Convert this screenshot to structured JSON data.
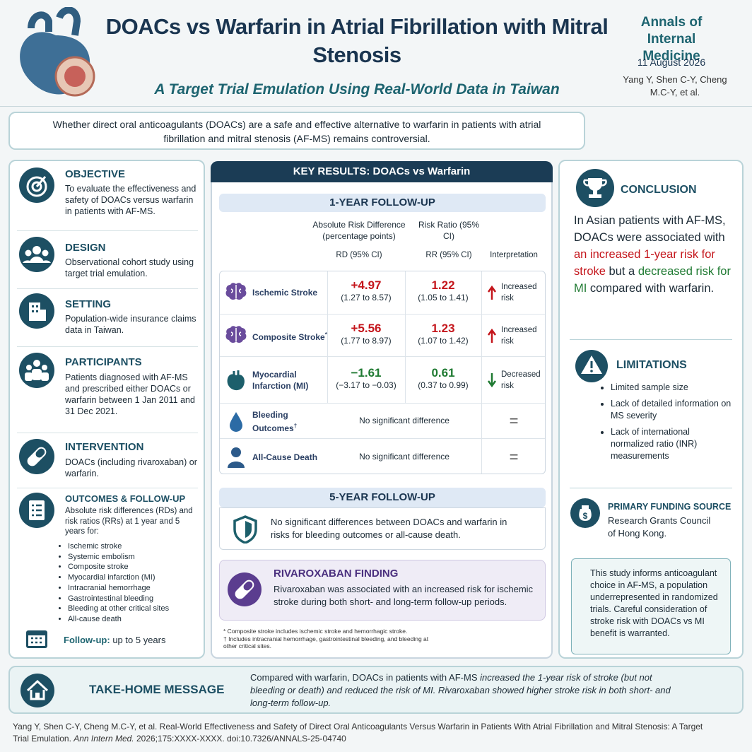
{
  "header": {
    "title": "DOACs vs Warfarin in Atrial Fibrillation with Mitral Stenosis",
    "subtitle": "A Target Trial Emulation Using Real-World Data in Taiwan",
    "journal": "Annals of Internal Medicine",
    "date": "11 August 2026",
    "authors": "Yang Y, Shen C-Y, Cheng M.C-Y, et al."
  },
  "intro": "Whether direct oral anticoagulants (DOACs) are a safe and effective alternative to warfarin in patients with atrial fibrillation and mitral stenosis (AF-MS) remains controversial.",
  "left": {
    "objective": {
      "heading": "OBJECTIVE",
      "text": "To evaluate the effectiveness and safety of DOACs versus warfarin in patients with AF-MS."
    },
    "design": {
      "heading": "DESIGN",
      "text": "Observational cohort study using target trial emulation."
    },
    "setting": {
      "heading": "SETTING",
      "text": "Population-wide insurance claims data in Taiwan."
    },
    "participants": {
      "heading": "PARTICIPANTS",
      "text": "Patients diagnosed with AF-MS and prescribed either DOACs or warfarin between 1 Jan 2011 and 31 Dec 2021."
    },
    "intervention": {
      "heading": "INTERVENTION",
      "text": "DOACs (including rivaroxaban) or warfarin."
    },
    "outcomes": {
      "heading": "OUTCOMES & FOLLOW-UP",
      "text": "Absolute risk differences (RDs) and risk ratios (RRs) at 1 year and 5 years for:",
      "items": [
        "Ischemic stroke",
        "Systemic embolism",
        "Composite stroke",
        "Myocardial infarction (MI)",
        "Intracranial hemorrhage",
        "Gastrointestinal bleeding",
        "Bleeding at other critical sites",
        "All-cause death"
      ]
    },
    "followup": {
      "label": "Follow-up:",
      "value": "up to 5 years"
    }
  },
  "results": {
    "title": "KEY RESULTS: DOACs vs Warfarin",
    "one_year": "1-YEAR FOLLOW-UP",
    "columns": {
      "rd_header": "Absolute Risk Difference (percentage points)",
      "rr_header": "Risk Ratio (95% CI)",
      "rd_sub": "RD (95% CI)",
      "rr_sub": "RR (95% CI)",
      "interpretation": "Interpretation"
    },
    "rows": [
      {
        "name": "Ischemic Stroke",
        "rd": "+4.97",
        "rd_ci": "(1.27 to 8.57)",
        "rr": "1.22",
        "rr_ci": "(1.05 to 1.41)",
        "interpretation": "Increased risk"
      },
      {
        "name": "Composite Stroke",
        "marker": "*",
        "rd": "+5.56",
        "rd_ci": "(1.77 to 8.97)",
        "rr": "1.23",
        "rr_ci": "(1.07 to 1.42)",
        "interpretation": "Increased risk"
      },
      {
        "name": "Myocardial Infarction (MI)",
        "rd": "−1.61",
        "rd_ci": "(−3.17 to −0.03)",
        "rr": "0.61",
        "rr_ci": "(0.37 to 0.99)",
        "interpretation": "Decreased risk"
      },
      {
        "name": "Bleeding Outcomes",
        "marker": "†",
        "note": "No significant difference",
        "symbol": "="
      },
      {
        "name": "All-Cause Death",
        "note": "No significant difference",
        "symbol": "="
      }
    ],
    "five_year": {
      "heading": "5-YEAR FOLLOW-UP",
      "text": "No significant differences between DOACs and warfarin in risks for bleeding outcomes or all-cause death."
    },
    "rivaroxaban": {
      "heading": "RIVAROXABAN FINDING",
      "text": "Rivaroxaban was associated with an increased risk for ischemic stroke during both short- and long-term follow-up periods."
    },
    "footnotes": [
      "* Composite stroke includes ischemic stroke and hemorrhagic stroke.",
      "† Includes intracranial hemorrhage, gastrointestinal bleeding, and bleeding at other critical sites."
    ]
  },
  "right": {
    "conclusion": {
      "heading": "CONCLUSION",
      "segments": [
        "In Asian patients with AF-MS, DOACs were associated with ",
        "an increased 1-year risk for stroke",
        " but a ",
        "decreased risk for MI",
        " compared with warfarin."
      ]
    },
    "limitations": {
      "heading": "LIMITATIONS",
      "items": [
        "Limited sample size",
        "Lack of detailed information on MS severity",
        "Lack of international normalized ratio (INR) measurements"
      ]
    },
    "funding": {
      "heading": "PRIMARY FUNDING SOURCE",
      "text": "Research Grants Council of Hong Kong."
    },
    "note": "This study informs anticoagulant choice in AF-MS, a population underrepresented in randomized trials. Careful consideration of stroke risk with DOACs vs MI benefit is warranted."
  },
  "take_home": {
    "heading": "TAKE-HOME MESSAGE",
    "segments": [
      "Compared with warfarin, DOACs in patients with AF-MS ",
      "increased the 1-year risk of stroke (but not bleeding or death) and reduced the risk of MI. Rivaroxaban showed higher stroke risk in both short- and long-term follow-up."
    ]
  },
  "citation": {
    "segments": [
      "Yang Y, Shen C-Y, Cheng M.C-Y, et al. Real-World Effectiveness and Safety of Direct Oral Anticoagulants Versus Warfarin in Patients With Atrial Fibrillation and Mitral Stenosis: A Target Trial Emulation. ",
      "Ann Intern Med.",
      " 2026;175:XXXX-XXXX. doi:10.7326/ANNALS-25-04740"
    ]
  }
}
